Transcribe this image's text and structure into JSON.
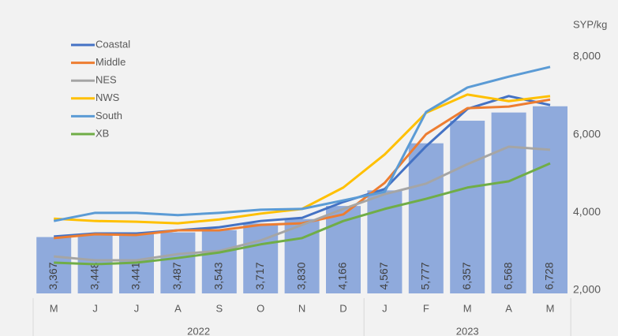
{
  "chart_data": {
    "type": "bar_line",
    "y_axis_label": "SYP/kg",
    "categories": [
      "M",
      "J",
      "J",
      "A",
      "S",
      "O",
      "N",
      "D",
      "J",
      "F",
      "M",
      "A",
      "M"
    ],
    "x_groups": [
      {
        "label": "2022",
        "count": 8
      },
      {
        "label": "2023",
        "count": 5
      }
    ],
    "bar_color": "#8faadc",
    "values": [
      3367,
      3448,
      3441,
      3487,
      3543,
      3717,
      3830,
      4166,
      4567,
      5777,
      6357,
      6568,
      6728
    ],
    "value_labels": [
      "3,367",
      "3,448",
      "3,441",
      "3,487",
      "3,543",
      "3,717",
      "3,830",
      "4,166",
      "4,567",
      "5,777",
      "6,357",
      "6,568",
      "6,728"
    ],
    "series": [
      {
        "name": "Coastal",
        "color": "#4472c4",
        "values": [
          3380,
          3460,
          3460,
          3540,
          3620,
          3780,
          3860,
          4270,
          4600,
          5700,
          6660,
          6990,
          6760
        ]
      },
      {
        "name": "Middle",
        "color": "#ed7d31",
        "values": [
          3340,
          3440,
          3420,
          3540,
          3540,
          3680,
          3720,
          3950,
          4760,
          6010,
          6680,
          6720,
          6900
        ]
      },
      {
        "name": "NES",
        "color": "#a5a5a5",
        "values": [
          2870,
          2770,
          2770,
          2930,
          3010,
          3280,
          3680,
          4090,
          4470,
          4740,
          5240,
          5690,
          5610
        ]
      },
      {
        "name": "NWS",
        "color": "#ffc000",
        "values": [
          3840,
          3780,
          3760,
          3720,
          3820,
          3970,
          4090,
          4640,
          5490,
          6560,
          7030,
          6860,
          6990
        ]
      },
      {
        "name": "South",
        "color": "#5b9bd5",
        "values": [
          3780,
          3990,
          3990,
          3930,
          3990,
          4070,
          4090,
          4310,
          4530,
          6580,
          7210,
          7490,
          7740
        ]
      },
      {
        "name": "XB",
        "color": "#70ad47",
        "values": [
          2710,
          2670,
          2710,
          2830,
          2970,
          3180,
          3340,
          3780,
          4090,
          4350,
          4640,
          4800,
          5260
        ]
      }
    ],
    "ylim": [
      2000,
      8000
    ],
    "yticks": [
      {
        "value": 2000,
        "label": "2,000"
      },
      {
        "value": 4000,
        "label": "4,000"
      },
      {
        "value": 6000,
        "label": "6,000"
      },
      {
        "value": 8000,
        "label": "8,000"
      }
    ]
  }
}
